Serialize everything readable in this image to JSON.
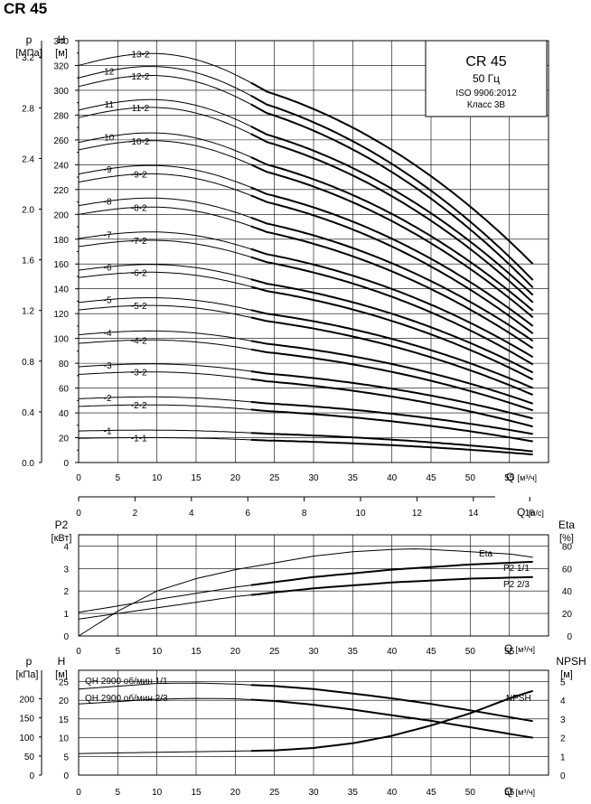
{
  "title": "CR 45",
  "info_box": {
    "title": "CR 45",
    "freq": "50 Гц",
    "standard": "ISO 9906:2012",
    "class": "Класс 3B"
  },
  "chart_data": [
    {
      "type": "line",
      "name": "head",
      "left_axis_title": "p",
      "left_axis_unit": "[МПа]",
      "right_axis_title": "H",
      "right_axis_unit": "[м]",
      "x_unit_label": "Q",
      "x_unit": "[м³/ч]",
      "x2_unit_label": "Q",
      "x2_unit": "[л/с]",
      "xlim": [
        0,
        60
      ],
      "ylim": [
        0,
        340
      ],
      "x_ticks": [
        0,
        5,
        10,
        15,
        20,
        25,
        30,
        35,
        40,
        45,
        50,
        55
      ],
      "y_ticks": [
        0,
        20,
        40,
        60,
        80,
        100,
        120,
        140,
        160,
        180,
        200,
        220,
        240,
        260,
        280,
        300,
        320,
        340
      ],
      "p_ticks": [
        "0.0",
        "0.4",
        "0.8",
        "1.2",
        "1.6",
        "2.0",
        "2.4",
        "2.8",
        "3.2"
      ],
      "x2_ticks": [
        0,
        2,
        4,
        6,
        8,
        10,
        12,
        14,
        16
      ],
      "flow_start": 22,
      "flow_end": 58,
      "series": [
        {
          "name": "-1-1",
          "h0": 19.5,
          "hend": 6.5
        },
        {
          "name": "-1",
          "h0": 25.4,
          "hend": 9.0
        },
        {
          "name": "-2-2",
          "h0": 45.2,
          "hend": 17.0
        },
        {
          "name": "-2",
          "h0": 51.4,
          "hend": 23.0
        },
        {
          "name": "-3-2",
          "h0": 71.0,
          "hend": 29.0
        },
        {
          "name": "-3",
          "h0": 77.2,
          "hend": 35.5
        },
        {
          "name": "-4-2",
          "h0": 96.0,
          "hend": 42.0
        },
        {
          "name": "-4",
          "h0": 103.0,
          "hend": 47.5
        },
        {
          "name": "-5-2",
          "h0": 123.0,
          "hend": 54.5
        },
        {
          "name": "-5",
          "h0": 129.0,
          "hend": 60.0
        },
        {
          "name": "-6-2",
          "h0": 149.0,
          "hend": 67.0
        },
        {
          "name": "-6",
          "h0": 155.0,
          "hend": 72.5
        },
        {
          "name": "-7-2",
          "h0": 174.0,
          "hend": 79.0
        },
        {
          "name": "-7",
          "h0": 180.5,
          "hend": 85.0
        },
        {
          "name": "-8-2",
          "h0": 200.0,
          "hend": 92.0
        },
        {
          "name": "-8",
          "h0": 207.0,
          "hend": 98.0
        },
        {
          "name": "-9-2",
          "h0": 226.0,
          "hend": 104.0
        },
        {
          "name": "-9",
          "h0": 232.5,
          "hend": 110.0
        },
        {
          "name": "-10-2",
          "h0": 252.0,
          "hend": 117.0
        },
        {
          "name": "-10",
          "h0": 258.0,
          "hend": 122.5
        },
        {
          "name": "-11-2",
          "h0": 278.0,
          "hend": 129.0
        },
        {
          "name": "-11",
          "h0": 284.0,
          "hend": 135.0
        },
        {
          "name": "-12-2",
          "h0": 303.0,
          "hend": 141.0
        },
        {
          "name": "-12",
          "h0": 310.0,
          "hend": 147.0
        },
        {
          "name": "-13-2",
          "h0": 320.0,
          "hend": 160.0
        }
      ]
    },
    {
      "type": "line",
      "name": "power-efficiency",
      "left_axis_title": "P2",
      "left_axis_unit": "[кВт]",
      "right_axis_title": "Eta",
      "right_axis_unit": "[%]",
      "x_unit_label": "Q",
      "x_unit": "[м³/ч]",
      "xlim": [
        0,
        60
      ],
      "ylim": [
        0,
        4
      ],
      "y_ticks": [
        0,
        1,
        2,
        3,
        4
      ],
      "eta_ticks": [
        0,
        20,
        40,
        60,
        80
      ],
      "series": [
        {
          "name": "Eta",
          "x": [
            0,
            5,
            10,
            15,
            20,
            25,
            30,
            35,
            40,
            43,
            45,
            50,
            55,
            58
          ],
          "y": [
            0,
            22,
            40,
            51,
            59,
            65,
            71,
            75,
            77,
            77.5,
            77,
            75,
            73,
            70
          ]
        },
        {
          "name": "P2 1/1",
          "x": [
            0,
            10,
            20,
            30,
            40,
            50,
            58
          ],
          "y": [
            1.05,
            1.62,
            2.17,
            2.62,
            2.95,
            3.18,
            3.3
          ]
        },
        {
          "name": "P2 2/3",
          "x": [
            0,
            10,
            20,
            30,
            40,
            50,
            58
          ],
          "y": [
            0.75,
            1.25,
            1.75,
            2.12,
            2.38,
            2.55,
            2.62
          ]
        }
      ]
    },
    {
      "type": "line",
      "name": "qh-npsh",
      "left_axis_title": "p",
      "left_axis_unit": "[кПа]",
      "mid_axis_title": "H",
      "mid_axis_unit": "[м]",
      "right_axis_title": "NPSH",
      "right_axis_unit": "[м]",
      "x_unit_label": "Q",
      "x_unit": "[м³/ч]",
      "xlim": [
        0,
        60
      ],
      "ylim": [
        0,
        25
      ],
      "y_ticks": [
        0,
        5,
        10,
        15,
        20,
        25
      ],
      "kpa_ticks": [
        0,
        50,
        100,
        150,
        200
      ],
      "npsh_ticks": [
        0,
        1,
        2,
        3,
        4,
        5
      ],
      "series": [
        {
          "name": "QH 2900 об/мин 1/1",
          "x": [
            0,
            10,
            15,
            20,
            25,
            30,
            35,
            40,
            45,
            50,
            55,
            58
          ],
          "y": [
            23.0,
            24.5,
            24.6,
            24.3,
            23.8,
            23.0,
            21.8,
            20.5,
            19.0,
            17.3,
            15.5,
            14.4
          ]
        },
        {
          "name": "QH 2900 об/мин 2/3",
          "x": [
            0,
            10,
            15,
            20,
            25,
            30,
            35,
            40,
            45,
            50,
            55,
            58
          ],
          "y": [
            19.0,
            20.3,
            20.5,
            20.4,
            19.8,
            18.8,
            17.5,
            16.0,
            14.5,
            12.8,
            11.0,
            10.0
          ]
        },
        {
          "name": "NPSH",
          "x": [
            0,
            10,
            20,
            25,
            30,
            35,
            40,
            45,
            50,
            55,
            58
          ],
          "y": [
            1.15,
            1.22,
            1.28,
            1.32,
            1.45,
            1.7,
            2.1,
            2.65,
            3.3,
            4.1,
            4.5
          ]
        }
      ]
    }
  ]
}
